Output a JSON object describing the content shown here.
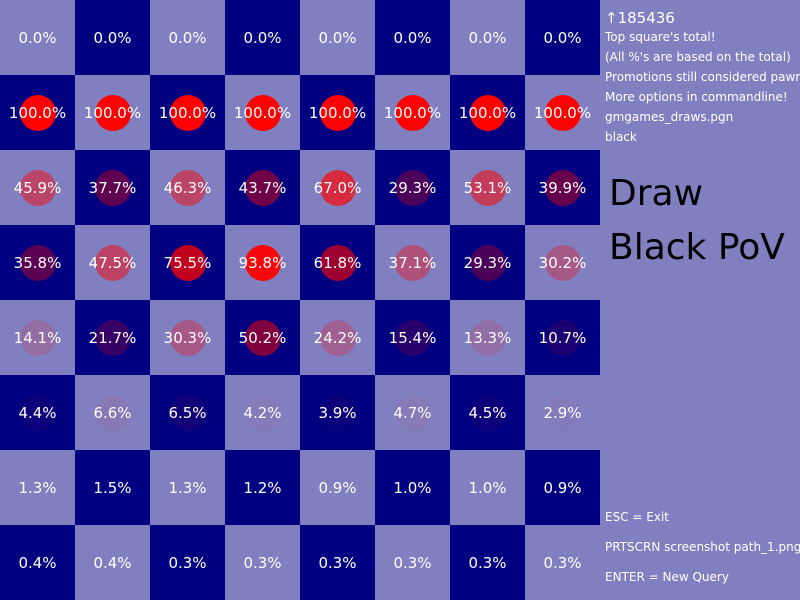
{
  "board": {
    "colors": {
      "light": "#8080c0",
      "dark": "#000080",
      "dot_full": "#ff0000"
    },
    "top_row_is_light_first": true,
    "rows": [
      [
        "0.0%",
        "0.0%",
        "0.0%",
        "0.0%",
        "0.0%",
        "0.0%",
        "0.0%",
        "0.0%"
      ],
      [
        "100.0%",
        "100.0%",
        "100.0%",
        "100.0%",
        "100.0%",
        "100.0%",
        "100.0%",
        "100.0%"
      ],
      [
        "45.9%",
        "37.7%",
        "46.3%",
        "43.7%",
        "67.0%",
        "29.3%",
        "53.1%",
        "39.9%"
      ],
      [
        "35.8%",
        "47.5%",
        "75.5%",
        "93.8%",
        "61.8%",
        "37.1%",
        "29.3%",
        "30.2%"
      ],
      [
        "14.1%",
        "21.7%",
        "30.3%",
        "50.2%",
        "24.2%",
        "15.4%",
        "13.3%",
        "10.7%"
      ],
      [
        "4.4%",
        "6.6%",
        "6.5%",
        "4.2%",
        "3.9%",
        "4.7%",
        "4.5%",
        "2.9%"
      ],
      [
        "1.3%",
        "1.5%",
        "1.3%",
        "1.2%",
        "0.9%",
        "1.0%",
        "1.0%",
        "0.9%"
      ],
      [
        "0.4%",
        "0.4%",
        "0.3%",
        "0.3%",
        "0.3%",
        "0.3%",
        "0.3%",
        "0.3%"
      ]
    ]
  },
  "panel": {
    "total": "↑185436",
    "notes": [
      "Top square's total!",
      "(All %'s are based on the total)",
      "Promotions still considered pawns",
      "More options in commandline!",
      "gmgames_draws.pgn",
      "black"
    ],
    "result": "Draw",
    "perspective": "Black PoV",
    "keys": [
      "ESC = Exit",
      "PRTSCRN screenshot path_1.png",
      "ENTER = New Query"
    ]
  }
}
